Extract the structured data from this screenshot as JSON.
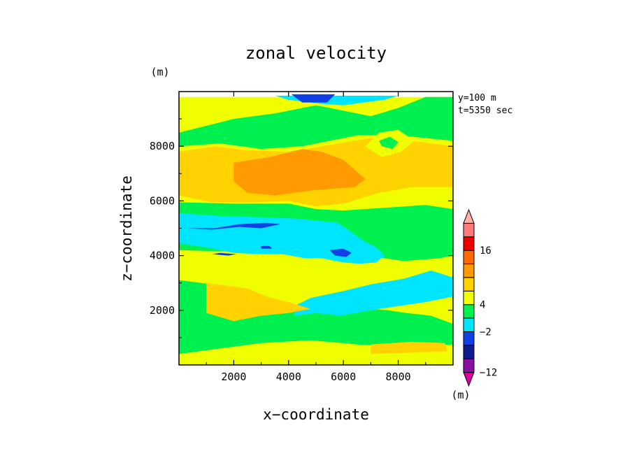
{
  "chart_data": {
    "type": "heatmap",
    "title": "zonal velocity",
    "xlabel": "x−coordinate",
    "ylabel": "z−coordinate",
    "x_unit": "(m)",
    "y_unit": "(m)",
    "annotation": [
      "y=100 m",
      "t=5350 sec"
    ],
    "xlim": [
      0,
      10000
    ],
    "ylim": [
      0,
      10000
    ],
    "x_ticks": [
      2000,
      4000,
      6000,
      8000
    ],
    "y_ticks": [
      2000,
      4000,
      6000,
      8000
    ],
    "x_tick_labels": [
      "2000",
      "4000",
      "6000",
      "8000"
    ],
    "y_tick_labels": [
      "2000",
      "4000",
      "6000",
      "8000"
    ],
    "colorbar": {
      "unit": "(m)",
      "colors": [
        "#dd00a0",
        "#8a10a0",
        "#101a90",
        "#1040e6",
        "#00e5ff",
        "#00f050",
        "#f0ff00",
        "#ffd200",
        "#ff9a00",
        "#ff6a00",
        "#ee0000",
        "#ff7a7a",
        "#ffb0a8"
      ],
      "tick_labels": [
        {
          "label": "16",
          "boundary": 10
        },
        {
          "label": "4",
          "boundary": 6
        },
        {
          "label": "−2",
          "boundary": 4
        },
        {
          "label": "−12",
          "boundary": 1
        }
      ]
    },
    "legend": "right",
    "grid": false,
    "regions": [
      {
        "level": 6,
        "points": [
          [
            0,
            0
          ],
          [
            10000,
            0
          ],
          [
            10000,
            9800
          ],
          [
            0,
            9800
          ]
        ]
      },
      {
        "level": 5,
        "points": [
          [
            0,
            400
          ],
          [
            1500,
            600
          ],
          [
            3000,
            800
          ],
          [
            4800,
            900
          ],
          [
            6500,
            750
          ],
          [
            8200,
            650
          ],
          [
            10000,
            750
          ],
          [
            10000,
            1500
          ],
          [
            9200,
            1800
          ],
          [
            8300,
            1900
          ],
          [
            7600,
            2000
          ],
          [
            7000,
            2050
          ],
          [
            5600,
            1900
          ],
          [
            4800,
            2000
          ],
          [
            3500,
            2350
          ],
          [
            2600,
            2700
          ],
          [
            1700,
            2900
          ],
          [
            800,
            3000
          ],
          [
            0,
            3100
          ],
          [
            0,
            2000
          ],
          [
            0,
            1700
          ]
        ]
      },
      {
        "level": 5,
        "points": [
          [
            0,
            4200
          ],
          [
            1800,
            4150
          ],
          [
            3000,
            4200
          ],
          [
            4500,
            4350
          ],
          [
            6000,
            4200
          ],
          [
            7200,
            3950
          ],
          [
            8200,
            3800
          ],
          [
            9500,
            3900
          ],
          [
            10000,
            4000
          ],
          [
            10000,
            5700
          ],
          [
            9000,
            5850
          ],
          [
            7500,
            5750
          ],
          [
            6000,
            5650
          ],
          [
            5000,
            5700
          ],
          [
            4000,
            5900
          ],
          [
            2000,
            5900
          ],
          [
            0,
            5950
          ]
        ]
      },
      {
        "level": 5,
        "points": [
          [
            0,
            8000
          ],
          [
            1500,
            8100
          ],
          [
            3000,
            7900
          ],
          [
            4500,
            8000
          ],
          [
            6500,
            8400
          ],
          [
            8000,
            8400
          ],
          [
            10000,
            8200
          ],
          [
            10000,
            9800
          ],
          [
            9000,
            9800
          ],
          [
            8000,
            9400
          ],
          [
            7000,
            9100
          ],
          [
            6000,
            9300
          ],
          [
            5000,
            9500
          ],
          [
            3500,
            9200
          ],
          [
            2000,
            9000
          ],
          [
            0,
            8500
          ]
        ]
      },
      {
        "level": 4,
        "points": [
          [
            0,
            5550
          ],
          [
            1500,
            5450
          ],
          [
            3000,
            5400
          ],
          [
            4300,
            5350
          ],
          [
            5800,
            5200
          ],
          [
            6800,
            4500
          ],
          [
            7200,
            4300
          ],
          [
            7500,
            4000
          ],
          [
            7200,
            3750
          ],
          [
            6600,
            3700
          ],
          [
            6000,
            3750
          ],
          [
            5200,
            3900
          ],
          [
            4600,
            3900
          ],
          [
            3800,
            4050
          ],
          [
            3000,
            4050
          ],
          [
            2000,
            4100
          ],
          [
            1000,
            4300
          ],
          [
            0,
            4450
          ]
        ]
      },
      {
        "level": 4,
        "points": [
          [
            4200,
            1800
          ],
          [
            5000,
            1900
          ],
          [
            5900,
            1800
          ],
          [
            7000,
            2000
          ],
          [
            8000,
            2150
          ],
          [
            9000,
            2300
          ],
          [
            10000,
            2500
          ],
          [
            10000,
            3200
          ],
          [
            9200,
            3450
          ],
          [
            8200,
            3150
          ],
          [
            7000,
            2950
          ],
          [
            6000,
            2700
          ],
          [
            4800,
            2450
          ],
          [
            4300,
            2200
          ]
        ]
      },
      {
        "level": 4,
        "points": [
          [
            0,
            9850
          ],
          [
            3500,
            9850
          ],
          [
            4000,
            9700
          ],
          [
            5200,
            9550
          ],
          [
            6000,
            9500
          ],
          [
            7500,
            9700
          ],
          [
            8000,
            9850
          ],
          [
            0,
            9850
          ]
        ]
      },
      {
        "level": 3,
        "points": [
          [
            300,
            5000
          ],
          [
            1200,
            4950
          ],
          [
            2200,
            5050
          ],
          [
            3000,
            5000
          ],
          [
            3700,
            5150
          ],
          [
            3200,
            5200
          ],
          [
            2200,
            5150
          ],
          [
            1300,
            5000
          ]
        ]
      },
      {
        "level": 3,
        "points": [
          [
            4100,
            9900
          ],
          [
            5700,
            9900
          ],
          [
            5400,
            9600
          ],
          [
            4500,
            9600
          ]
        ]
      },
      {
        "level": 3,
        "points": [
          [
            5700,
            4000
          ],
          [
            6100,
            3950
          ],
          [
            6300,
            4100
          ],
          [
            6000,
            4250
          ],
          [
            5500,
            4200
          ]
        ]
      },
      {
        "level": 3,
        "points": [
          [
            1200,
            4050
          ],
          [
            1800,
            4000
          ],
          [
            2100,
            4050
          ],
          [
            1500,
            4100
          ]
        ]
      },
      {
        "level": 3,
        "points": [
          [
            3000,
            4250
          ],
          [
            3400,
            4250
          ],
          [
            3300,
            4350
          ],
          [
            3000,
            4350
          ]
        ]
      },
      {
        "level": 7,
        "points": [
          [
            0,
            6200
          ],
          [
            1200,
            5950
          ],
          [
            2500,
            5950
          ],
          [
            4000,
            6000
          ],
          [
            5000,
            5800
          ],
          [
            6000,
            5900
          ],
          [
            7300,
            6300
          ],
          [
            8500,
            6500
          ],
          [
            10000,
            6500
          ],
          [
            10000,
            8000
          ],
          [
            8500,
            8200
          ],
          [
            7000,
            8300
          ],
          [
            5200,
            8000
          ],
          [
            4000,
            7800
          ],
          [
            2500,
            7850
          ],
          [
            1300,
            8000
          ],
          [
            0,
            7800
          ]
        ]
      },
      {
        "level": 7,
        "points": [
          [
            1000,
            3000
          ],
          [
            2500,
            2800
          ],
          [
            3200,
            2500
          ],
          [
            4000,
            2300
          ],
          [
            4800,
            2050
          ],
          [
            4000,
            1900
          ],
          [
            3000,
            1800
          ],
          [
            2000,
            1600
          ],
          [
            1000,
            1900
          ]
        ]
      },
      {
        "level": 7,
        "points": [
          [
            7000,
            400
          ],
          [
            8500,
            450
          ],
          [
            9800,
            500
          ],
          [
            9700,
            800
          ],
          [
            8500,
            850
          ],
          [
            7000,
            750
          ]
        ]
      },
      {
        "level": 8,
        "points": [
          [
            2000,
            7400
          ],
          [
            3300,
            7600
          ],
          [
            4500,
            7900
          ],
          [
            5200,
            7800
          ],
          [
            6000,
            7500
          ],
          [
            6800,
            6800
          ],
          [
            6400,
            6500
          ],
          [
            5000,
            6400
          ],
          [
            3500,
            6200
          ],
          [
            2500,
            6300
          ],
          [
            2000,
            6700
          ]
        ]
      },
      {
        "level": 6,
        "points": [
          [
            7400,
            7600
          ],
          [
            8100,
            7800
          ],
          [
            8600,
            8200
          ],
          [
            8000,
            8600
          ],
          [
            7300,
            8500
          ],
          [
            6800,
            8000
          ]
        ]
      },
      {
        "level": 5,
        "points": [
          [
            7400,
            8000
          ],
          [
            7800,
            7900
          ],
          [
            8000,
            8150
          ],
          [
            7700,
            8350
          ],
          [
            7300,
            8200
          ]
        ]
      }
    ]
  }
}
